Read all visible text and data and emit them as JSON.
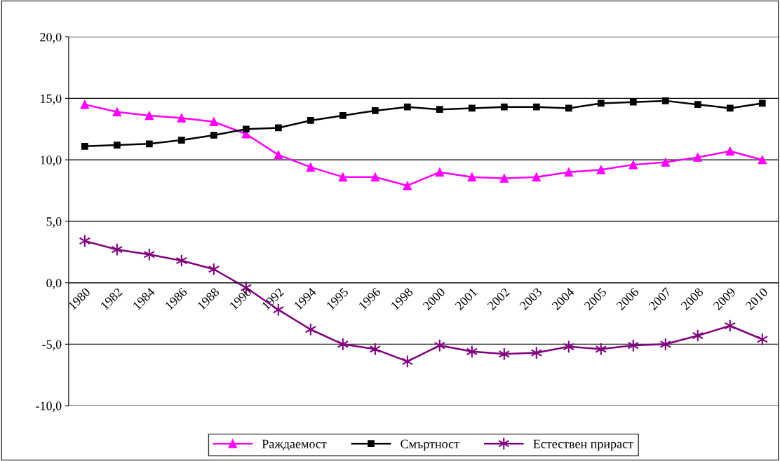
{
  "chart_data": {
    "type": "line",
    "categories": [
      "1980",
      "1982",
      "1984",
      "1986",
      "1988",
      "1990",
      "1992",
      "1994",
      "1995",
      "1996",
      "1998",
      "2000",
      "2001",
      "2002",
      "2003",
      "2004",
      "2005",
      "2006",
      "2007",
      "2008",
      "2009",
      "2010"
    ],
    "series": [
      {
        "name": "Раждаемост",
        "color": "#ff00ff",
        "marker": "triangle",
        "values": [
          14.5,
          13.9,
          13.6,
          13.4,
          13.1,
          12.1,
          10.4,
          9.4,
          8.6,
          8.6,
          7.9,
          9.0,
          8.6,
          8.5,
          8.6,
          9.0,
          9.2,
          9.6,
          9.8,
          10.2,
          10.7,
          10.0
        ]
      },
      {
        "name": "Смъртност",
        "color": "#000000",
        "marker": "square",
        "values": [
          11.1,
          11.2,
          11.3,
          11.6,
          12.0,
          12.5,
          12.6,
          13.2,
          13.6,
          14.0,
          14.3,
          14.1,
          14.2,
          14.3,
          14.3,
          14.2,
          14.6,
          14.7,
          14.8,
          14.5,
          14.2,
          14.6
        ]
      },
      {
        "name": "Естествен прираст",
        "color": "#800080",
        "marker": "cross",
        "values": [
          3.4,
          2.7,
          2.3,
          1.8,
          1.1,
          -0.4,
          -2.2,
          -3.8,
          -5.0,
          -5.4,
          -6.4,
          -5.1,
          -5.6,
          -5.8,
          -5.7,
          -5.2,
          -5.4,
          -5.1,
          -5.0,
          -4.3,
          -3.5,
          -4.6
        ]
      }
    ],
    "ylim": [
      -10,
      20
    ],
    "yticks": [
      {
        "value": -10,
        "label": "-10,0"
      },
      {
        "value": -5,
        "label": "-5,0"
      },
      {
        "value": 0,
        "label": "0,0"
      },
      {
        "value": 5,
        "label": "5,0"
      },
      {
        "value": 10,
        "label": "10,0"
      },
      {
        "value": 15,
        "label": "15,0"
      },
      {
        "value": 20,
        "label": "20,0"
      }
    ],
    "grid": "y",
    "legend": "bottom"
  }
}
